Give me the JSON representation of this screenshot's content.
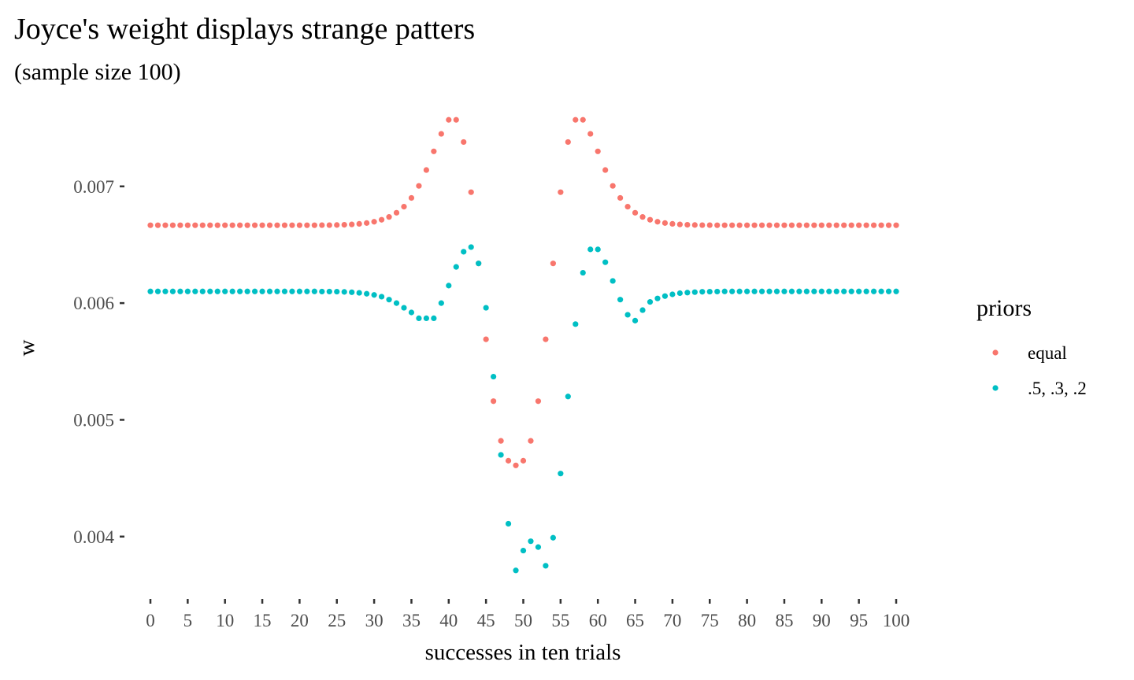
{
  "chart_data": {
    "type": "scatter",
    "title": "Joyce's weight displays strange patters",
    "subtitle": "(sample size 100)",
    "xlabel": "successes in ten trials",
    "ylabel": "w",
    "xlim": [
      0,
      100
    ],
    "ylim": [
      0.00354,
      0.00772
    ],
    "x_ticks": [
      0,
      5,
      10,
      15,
      20,
      25,
      30,
      35,
      40,
      45,
      50,
      55,
      60,
      65,
      70,
      75,
      80,
      85,
      90,
      95,
      100
    ],
    "x_tick_labels": [
      "0",
      "5",
      "10",
      "15",
      "20",
      "25",
      "30",
      "35",
      "40",
      "45",
      "50",
      "55",
      "60",
      "65",
      "70",
      "75",
      "80",
      "85",
      "90",
      "95",
      "100"
    ],
    "y_ticks": [
      0.004,
      0.005,
      0.006,
      0.007
    ],
    "y_tick_labels": [
      "0.004",
      "0.005",
      "0.006",
      "0.007"
    ],
    "grid": false,
    "legend": {
      "title": "priors",
      "position": "right"
    },
    "x": [
      0,
      1,
      2,
      3,
      4,
      5,
      6,
      7,
      8,
      9,
      10,
      11,
      12,
      13,
      14,
      15,
      16,
      17,
      18,
      19,
      20,
      21,
      22,
      23,
      24,
      25,
      26,
      27,
      28,
      29,
      30,
      31,
      32,
      33,
      34,
      35,
      36,
      37,
      38,
      39,
      40,
      41,
      42,
      43,
      44,
      45,
      46,
      47,
      48,
      49,
      50,
      51,
      52,
      53,
      54,
      55,
      56,
      57,
      58,
      59,
      60,
      61,
      62,
      63,
      64,
      65,
      66,
      67,
      68,
      69,
      70,
      71,
      72,
      73,
      74,
      75,
      76,
      77,
      78,
      79,
      80,
      81,
      82,
      83,
      84,
      85,
      86,
      87,
      88,
      89,
      90,
      91,
      92,
      93,
      94,
      95,
      96,
      97,
      98,
      99,
      100
    ],
    "series": [
      {
        "name": "equal",
        "color": "#F8766D",
        "values": [
          0.006667,
          0.006667,
          0.006667,
          0.006667,
          0.006667,
          0.006667,
          0.006667,
          0.006667,
          0.006667,
          0.006667,
          0.006667,
          0.006667,
          0.006667,
          0.006667,
          0.006667,
          0.006667,
          0.006667,
          0.006667,
          0.006667,
          0.006667,
          0.006667,
          0.006667,
          0.006667,
          0.006668,
          0.006668,
          0.006669,
          0.006671,
          0.006674,
          0.006679,
          0.006686,
          0.006697,
          0.006714,
          0.006738,
          0.006774,
          0.006826,
          0.006901,
          0.007004,
          0.00714,
          0.0073,
          0.00745,
          0.00757,
          0.00757,
          0.00738,
          0.00695,
          0.00634,
          0.00569,
          0.00516,
          0.00482,
          0.00465,
          0.00461,
          0.00465,
          0.00482,
          0.00516,
          0.00569,
          0.00634,
          0.00695,
          0.00738,
          0.00757,
          0.00757,
          0.00745,
          0.0073,
          0.00714,
          0.007004,
          0.006901,
          0.006826,
          0.006774,
          0.006738,
          0.006714,
          0.006697,
          0.006686,
          0.006679,
          0.006674,
          0.006671,
          0.006669,
          0.006668,
          0.006668,
          0.006667,
          0.006667,
          0.006667,
          0.006667,
          0.006667,
          0.006667,
          0.006667,
          0.006667,
          0.006667,
          0.006667,
          0.006667,
          0.006667,
          0.006667,
          0.006667,
          0.006667,
          0.006667,
          0.006667,
          0.006667,
          0.006667,
          0.006667,
          0.006667,
          0.006667,
          0.006667,
          0.006667,
          0.006667
        ]
      },
      {
        "name": ".5, .3, .2",
        "color": "#00BFC4",
        "values": [
          0.0061,
          0.0061,
          0.0061,
          0.0061,
          0.0061,
          0.0061,
          0.0061,
          0.0061,
          0.0061,
          0.0061,
          0.0061,
          0.0061,
          0.0061,
          0.0061,
          0.0061,
          0.0061,
          0.0061,
          0.0061,
          0.0061,
          0.0061,
          0.0061,
          0.0061,
          0.0061,
          0.006099,
          0.006099,
          0.006098,
          0.006096,
          0.006093,
          0.006088,
          0.00608,
          0.00607,
          0.006055,
          0.00603,
          0.006,
          0.00596,
          0.00592,
          0.00587,
          0.00587,
          0.00587,
          0.006,
          0.00615,
          0.00631,
          0.00644,
          0.00648,
          0.00634,
          0.00596,
          0.00537,
          0.0047,
          0.00411,
          0.00371,
          0.00388,
          0.00396,
          0.00391,
          0.00375,
          0.00399,
          0.00454,
          0.0052,
          0.00582,
          0.00626,
          0.00646,
          0.00646,
          0.00635,
          0.00619,
          0.00603,
          0.0059,
          0.00585,
          0.00594,
          0.00601,
          0.00604,
          0.00606,
          0.006075,
          0.006085,
          0.00609,
          0.006094,
          0.006097,
          0.006098,
          0.006099,
          0.0061,
          0.0061,
          0.0061,
          0.0061,
          0.0061,
          0.0061,
          0.0061,
          0.0061,
          0.0061,
          0.0061,
          0.0061,
          0.0061,
          0.0061,
          0.0061,
          0.0061,
          0.0061,
          0.0061,
          0.0061,
          0.0061,
          0.0061,
          0.0061,
          0.0061,
          0.0061,
          0.0061
        ]
      }
    ]
  }
}
